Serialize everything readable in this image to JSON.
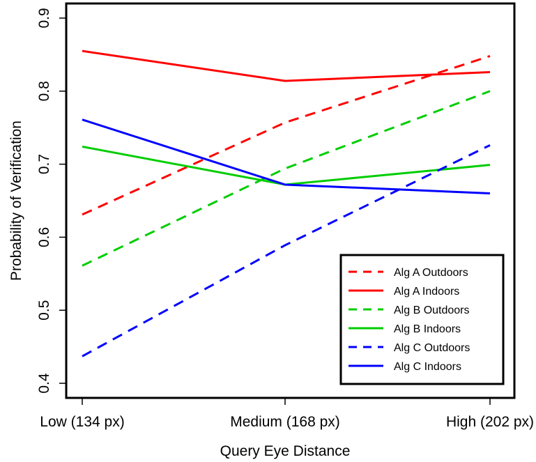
{
  "chart_data": {
    "type": "line",
    "title": "",
    "xlabel": "Query Eye Distance",
    "ylabel": "Probability of Verification",
    "categories": [
      "Low (134 px)",
      "Medium (168 px)",
      "High (202 px)"
    ],
    "ylim": [
      0.38,
      0.92
    ],
    "yticks": [
      "0.4",
      "0.5",
      "0.6",
      "0.7",
      "0.8",
      "0.9"
    ],
    "grid": false,
    "legend_position": "bottom-right",
    "series": [
      {
        "name": "Alg A Outdoors",
        "values": [
          0.631,
          0.757,
          0.848
        ],
        "color": "#ff0000",
        "dash": "dashed"
      },
      {
        "name": "Alg A Indoors",
        "values": [
          0.855,
          0.814,
          0.826
        ],
        "color": "#ff0000",
        "dash": "solid"
      },
      {
        "name": "Alg B Outdoors",
        "values": [
          0.561,
          0.694,
          0.8
        ],
        "color": "#00cd00",
        "dash": "dashed"
      },
      {
        "name": "Alg B Indoors",
        "values": [
          0.724,
          0.672,
          0.699
        ],
        "color": "#00cd00",
        "dash": "solid"
      },
      {
        "name": "Alg C Outdoors",
        "values": [
          0.437,
          0.589,
          0.726
        ],
        "color": "#0000ff",
        "dash": "dashed"
      },
      {
        "name": "Alg C Indoors",
        "values": [
          0.761,
          0.672,
          0.66
        ],
        "color": "#0000ff",
        "dash": "solid"
      }
    ]
  }
}
